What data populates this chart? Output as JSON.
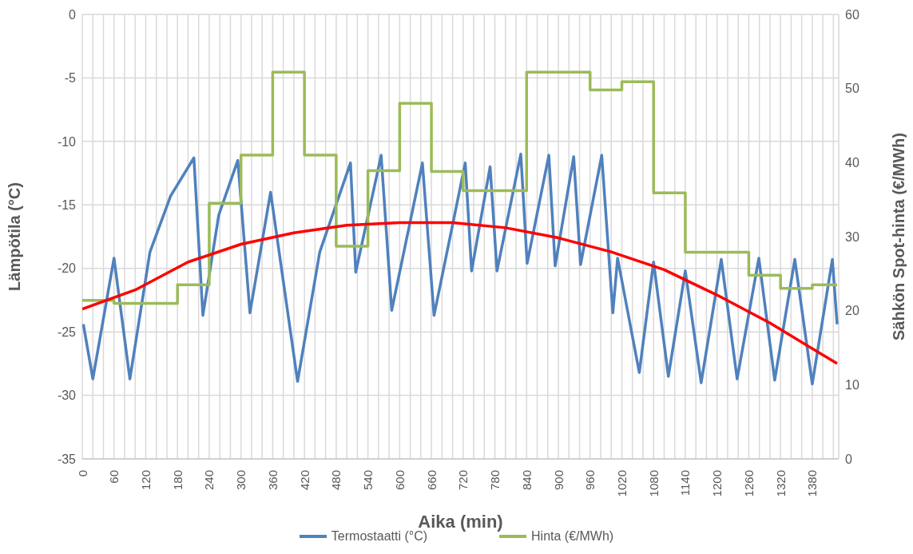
{
  "chart_data": {
    "type": "line",
    "xlabel": "Aika (min)",
    "ylabel": "Lämpötila (°C)",
    "y2label": "Sähkön Spot-hinta (€/MWh)",
    "xlim": [
      0,
      1430
    ],
    "xticks": [
      0,
      {
        "value": 20,
        "label": null
      },
      {
        "value": 40,
        "label": null
      },
      60,
      {
        "value": 80,
        "label": null
      },
      {
        "value": 100,
        "label": null
      },
      120,
      {
        "value": 140,
        "label": null
      },
      {
        "value": 160,
        "label": null
      },
      180,
      {
        "value": 200,
        "label": null
      },
      {
        "value": 220,
        "label": null
      },
      240,
      {
        "value": 260,
        "label": null
      },
      {
        "value": 280,
        "label": null
      },
      300,
      {
        "value": 320,
        "label": null
      },
      {
        "value": 340,
        "label": null
      },
      360,
      {
        "value": 380,
        "label": null
      },
      {
        "value": 400,
        "label": null
      },
      420,
      {
        "value": 440,
        "label": null
      },
      {
        "value": 460,
        "label": null
      },
      480,
      {
        "value": 500,
        "label": null
      },
      {
        "value": 520,
        "label": null
      },
      540,
      {
        "value": 560,
        "label": null
      },
      {
        "value": 580,
        "label": null
      },
      600,
      {
        "value": 620,
        "label": null
      },
      {
        "value": 640,
        "label": null
      },
      660,
      {
        "value": 680,
        "label": null
      },
      {
        "value": 700,
        "label": null
      },
      720,
      {
        "value": 740,
        "label": null
      },
      {
        "value": 760,
        "label": null
      },
      780,
      {
        "value": 800,
        "label": null
      },
      {
        "value": 820,
        "label": null
      },
      840,
      {
        "value": 860,
        "label": null
      },
      {
        "value": 880,
        "label": null
      },
      900,
      {
        "value": 920,
        "label": null
      },
      {
        "value": 940,
        "label": null
      },
      960,
      {
        "value": 980,
        "label": null
      },
      {
        "value": 1000,
        "label": null
      },
      1020,
      {
        "value": 1040,
        "label": null
      },
      {
        "value": 1060,
        "label": null
      },
      1080,
      {
        "value": 1100,
        "label": null
      },
      {
        "value": 1120,
        "label": null
      },
      1140,
      {
        "value": 1160,
        "label": null
      },
      {
        "value": 1180,
        "label": null
      },
      1200,
      {
        "value": 1220,
        "label": null
      },
      {
        "value": 1240,
        "label": null
      },
      1260,
      {
        "value": 1280,
        "label": null
      },
      {
        "value": 1300,
        "label": null
      },
      1320,
      {
        "value": 1340,
        "label": null
      },
      {
        "value": 1360,
        "label": null
      },
      1380,
      {
        "value": 1400,
        "label": null
      },
      {
        "value": 1420,
        "label": null
      }
    ],
    "ylim": [
      -35,
      0
    ],
    "yticks": [
      -35,
      -30,
      -25,
      -20,
      -15,
      -10,
      -5,
      0
    ],
    "y2lim": [
      0,
      60
    ],
    "y2ticks": [
      0,
      10,
      20,
      30,
      40,
      50,
      60
    ],
    "grid": true,
    "legend": "bottom",
    "marker": "none",
    "line_style": "solid",
    "series": [
      {
        "name": "Termostaatti (°C)",
        "color": "#4f81bd",
        "x": [
          2,
          20,
          60,
          90,
          128,
          167,
          211,
          228,
          258,
          294,
          317,
          356,
          407,
          449,
          507,
          517,
          565,
          585,
          643,
          665,
          724,
          736,
          771,
          784,
          829,
          841,
          882,
          894,
          929,
          942,
          982,
          1003,
          1012,
          1053,
          1080,
          1108,
          1140,
          1170,
          1208,
          1238,
          1279,
          1309,
          1347,
          1380,
          1418,
          1427
        ],
        "values": [
          -24.4,
          -28.7,
          -19.2,
          -28.7,
          -18.7,
          -14.3,
          -11.3,
          -23.7,
          -15.8,
          -11.5,
          -23.5,
          -14.0,
          -28.9,
          -18.7,
          -11.7,
          -20.3,
          -11.1,
          -23.3,
          -11.7,
          -23.7,
          -11.7,
          -20.2,
          -12.0,
          -20.2,
          -11.0,
          -19.6,
          -11.1,
          -19.8,
          -11.2,
          -19.7,
          -11.1,
          -23.5,
          -19.2,
          -28.2,
          -19.5,
          -28.5,
          -20.2,
          -29.0,
          -19.3,
          -28.7,
          -19.2,
          -28.8,
          -19.3,
          -29.1,
          -19.3,
          -24.4
        ]
      },
      {
        "name": "Hinta (€/MWh)",
        "type": "step",
        "axis": "y2",
        "color": "#9bbb59",
        "x": [
          0,
          60,
          120,
          180,
          240,
          300,
          360,
          420,
          480,
          540,
          600,
          660,
          720,
          780,
          840,
          900,
          960,
          1020,
          1080,
          1140,
          1200,
          1260,
          1320,
          1380,
          1427
        ],
        "values": [
          21.4,
          21.0,
          21.0,
          23.5,
          34.5,
          41.0,
          52.2,
          41.0,
          28.7,
          38.9,
          48.0,
          38.8,
          36.2,
          36.2,
          52.2,
          52.2,
          49.8,
          50.9,
          35.9,
          27.9,
          27.9,
          24.8,
          23.0,
          23.5,
          23.5
        ]
      },
      {
        "color": "#ff0000",
        "x": [
          0,
          100,
          200,
          300,
          400,
          500,
          600,
          700,
          800,
          900,
          1000,
          1100,
          1200,
          1300,
          1427
        ],
        "values": [
          -23.2,
          -21.7,
          -19.5,
          -18.1,
          -17.2,
          -16.6,
          -16.4,
          -16.4,
          -16.8,
          -17.6,
          -18.7,
          -20.1,
          -22.1,
          -24.3,
          -27.5
        ]
      }
    ]
  }
}
